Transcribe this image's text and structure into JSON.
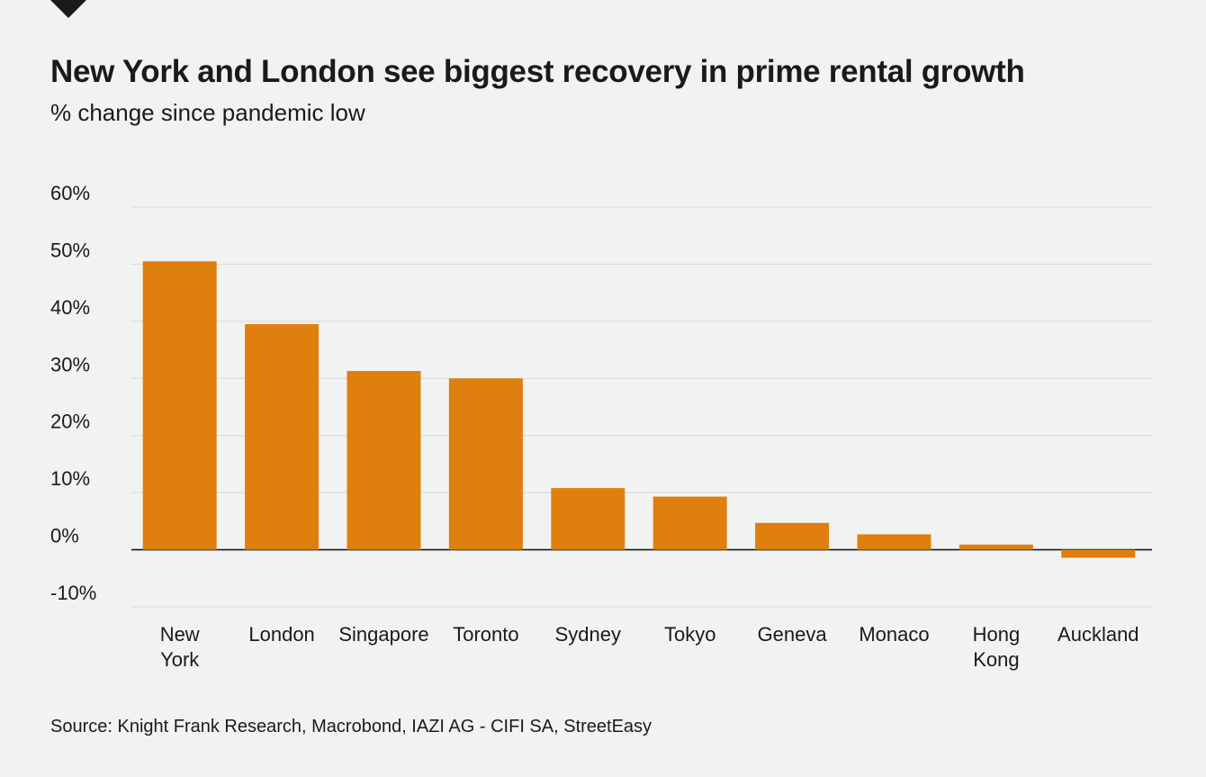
{
  "chart_data": {
    "type": "bar",
    "title": "New York and London see biggest recovery in prime rental growth",
    "subtitle": "% change since pandemic low",
    "categories": [
      "New York",
      "London",
      "Singapore",
      "Toronto",
      "Sydney",
      "Tokyo",
      "Geneva",
      "Monaco",
      "Hong Kong",
      "Auckland"
    ],
    "category_lines": [
      [
        "New",
        "York"
      ],
      [
        "London"
      ],
      [
        "Singapore"
      ],
      [
        "Toronto"
      ],
      [
        "Sydney"
      ],
      [
        "Tokyo"
      ],
      [
        "Geneva"
      ],
      [
        "Monaco"
      ],
      [
        "Hong",
        "Kong"
      ],
      [
        "Auckland"
      ]
    ],
    "values": [
      50.5,
      39.5,
      31.3,
      30.0,
      10.8,
      9.3,
      4.7,
      2.7,
      0.9,
      -1.4
    ],
    "y_ticks": [
      60,
      50,
      40,
      30,
      20,
      10,
      0,
      -10
    ],
    "y_tick_labels": [
      "60%",
      "50%",
      "40%",
      "30%",
      "20%",
      "10%",
      "0%",
      "-10%"
    ],
    "ylim": [
      -10,
      60
    ],
    "xlabel": "",
    "ylabel": "",
    "grid": true,
    "legend": "none",
    "bar_color": "#df7f0e",
    "source": "Source: Knight Frank Research, Macrobond, IAZI AG - CIFI SA, StreetEasy"
  }
}
